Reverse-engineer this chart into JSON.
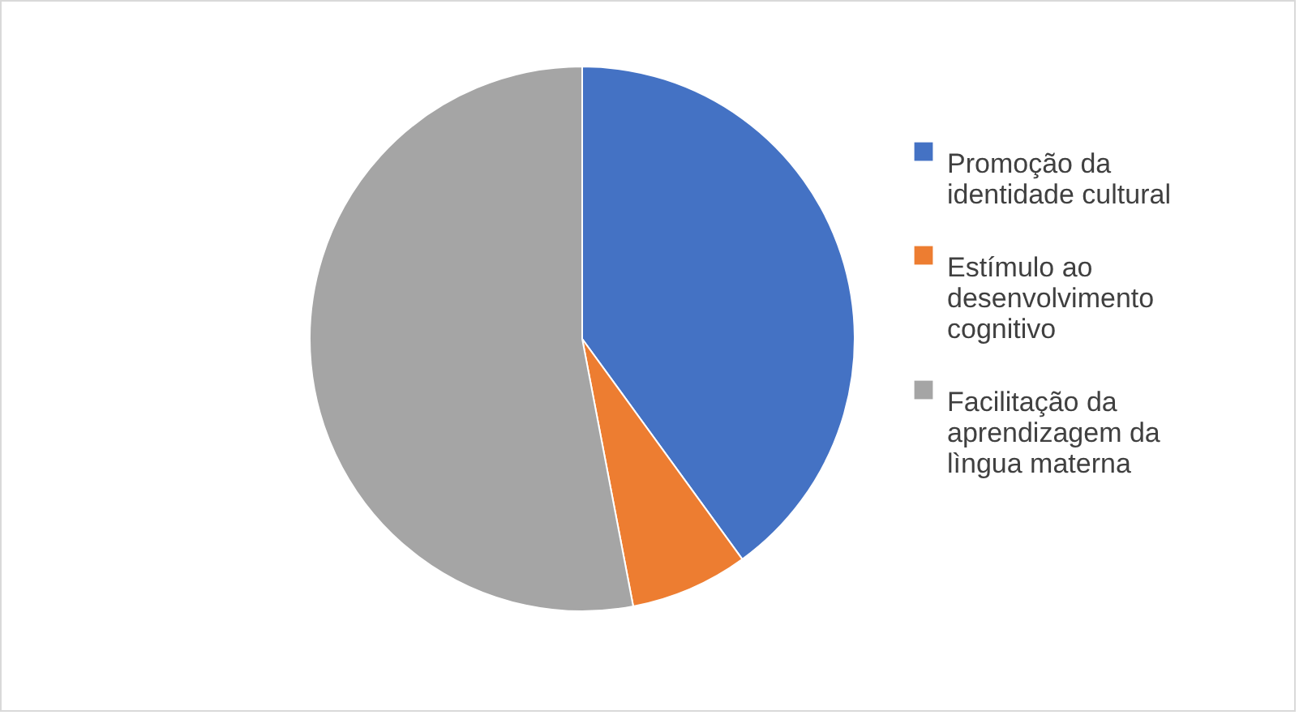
{
  "chart_data": {
    "type": "pie",
    "categories": [
      "Promoção da identidade cultural",
      "Estímulo ao desenvolvimento cognitivo",
      "Facilitação da aprendizagem da lìngua materna"
    ],
    "values": [
      40,
      7,
      53
    ],
    "colors": [
      "#4472c4",
      "#ed7d31",
      "#a5a5a5"
    ],
    "legend": "right"
  }
}
